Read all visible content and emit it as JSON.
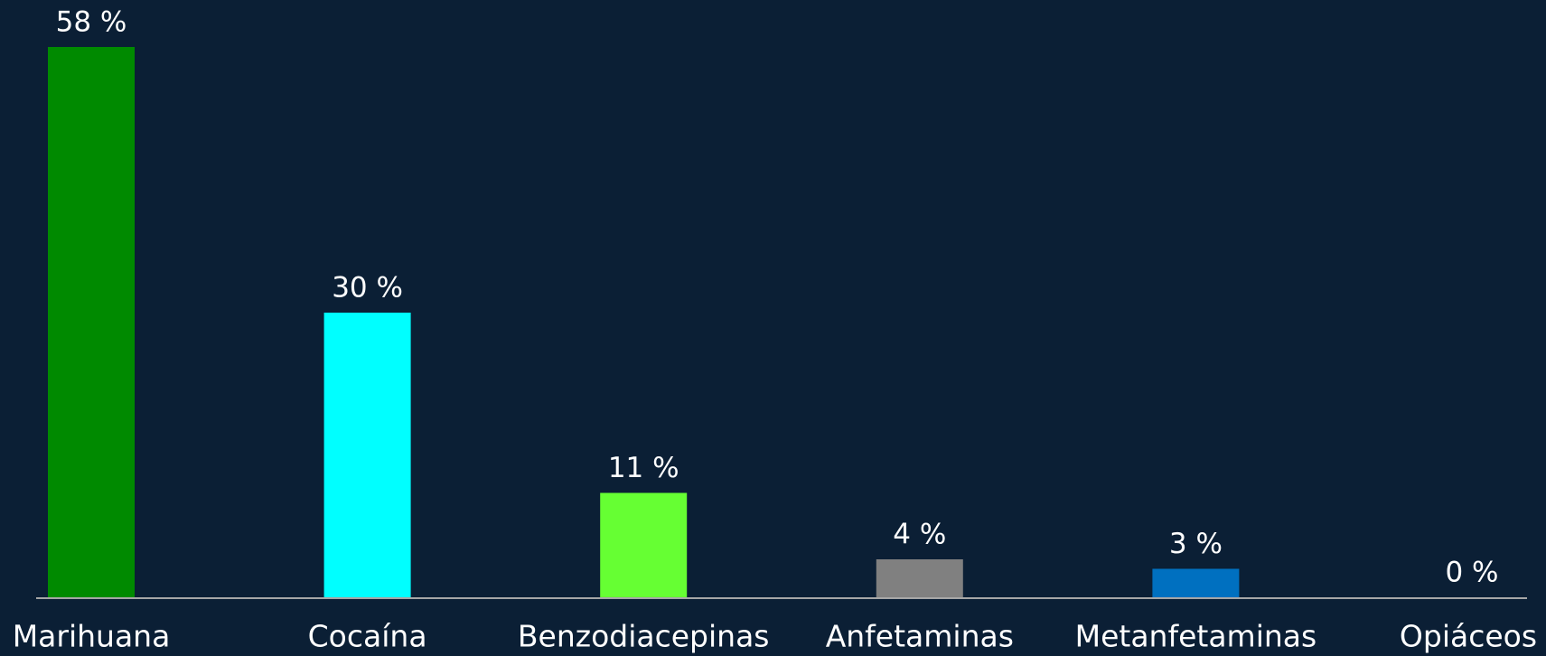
{
  "chart_data": {
    "type": "bar",
    "categories": [
      "Marihuana",
      "Cocaína",
      "Benzodiacepinas",
      "Anfetaminas",
      "Metanfetaminas",
      "Opiáceos"
    ],
    "values": [
      58,
      30,
      11,
      4,
      3,
      0
    ],
    "value_labels": [
      "58 %",
      "30 %",
      "11 %",
      "4 %",
      "3 %",
      "0 %"
    ],
    "colors": [
      "#008a00",
      "#00ffff",
      "#66ff33",
      "#808080",
      "#0070c0",
      "#ffc000"
    ]
  }
}
